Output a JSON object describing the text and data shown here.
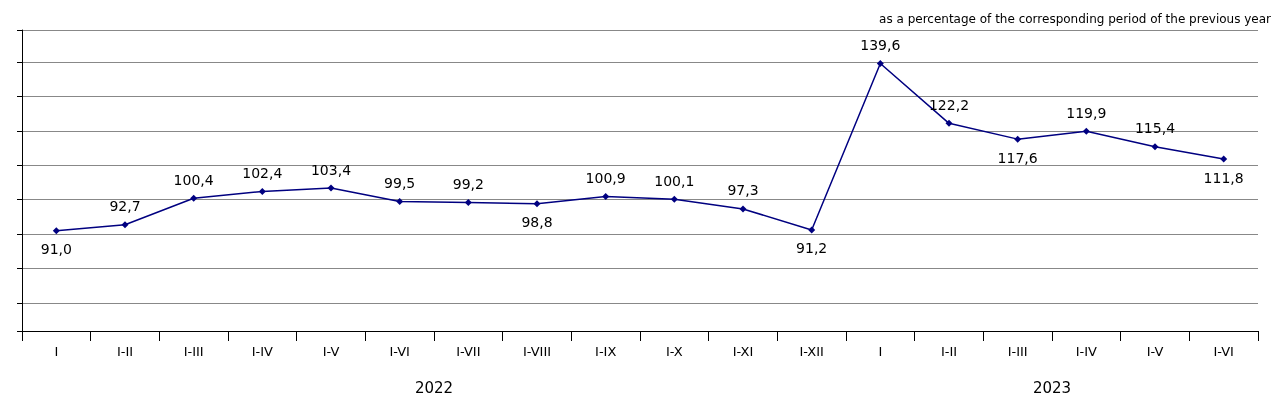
{
  "chart_data": {
    "type": "line",
    "subtitle": "as a percentage of the corresponding period of the previous year",
    "categories": [
      "I",
      "I-II",
      "I-III",
      "I-IV",
      "I-V",
      "I-VI",
      "I-VII",
      "I-VIII",
      "I-IX",
      "I-X",
      "I-XI",
      "I-XII",
      "I",
      "I-II",
      "I-III",
      "I-IV",
      "I-V",
      "I-VI"
    ],
    "series": [
      {
        "color": "#000080",
        "values": [
          91.0,
          92.7,
          100.4,
          102.4,
          103.4,
          99.5,
          99.2,
          98.8,
          100.9,
          100.1,
          97.3,
          91.2,
          139.6,
          122.2,
          117.6,
          119.9,
          115.4,
          111.8
        ],
        "value_labels": [
          "91,0",
          "92,7",
          "100,4",
          "102,4",
          "103,4",
          "99,5",
          "99,2",
          "98,8",
          "100,9",
          "100,1",
          "97,3",
          "91,2",
          "139,6",
          "122,2",
          "117,6",
          "119,9",
          "115,4",
          "111,8"
        ]
      }
    ],
    "annotations": [
      "2022",
      "2023"
    ],
    "tick_labels": "x",
    "grid": "y",
    "marker": "diamond",
    "line_style": "solid"
  }
}
